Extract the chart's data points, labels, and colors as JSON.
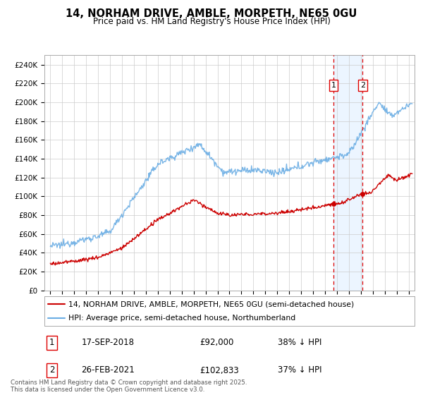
{
  "title": "14, NORHAM DRIVE, AMBLE, MORPETH, NE65 0GU",
  "subtitle": "Price paid vs. HM Land Registry's House Price Index (HPI)",
  "legend_line1": "14, NORHAM DRIVE, AMBLE, MORPETH, NE65 0GU (semi-detached house)",
  "legend_line2": "HPI: Average price, semi-detached house, Northumberland",
  "footer": "Contains HM Land Registry data © Crown copyright and database right 2025.\nThis data is licensed under the Open Government Licence v3.0.",
  "marker1_date": "17-SEP-2018",
  "marker1_price": "£92,000",
  "marker1_hpi": "38% ↓ HPI",
  "marker1_price_val": 92000,
  "marker2_date": "26-FEB-2021",
  "marker2_price": "£102,833",
  "marker2_hpi": "37% ↓ HPI",
  "marker2_price_val": 102833,
  "ylim": [
    0,
    250000
  ],
  "xlim_start": 1994.5,
  "xlim_end": 2025.5,
  "hpi_color": "#6aade4",
  "price_color": "#cc0000",
  "vline_color": "#dd0000",
  "bg_shade_color": "#ddeeff",
  "marker1_x": 2018.72,
  "marker2_x": 2021.15,
  "bg_color": "#f8f8f8"
}
